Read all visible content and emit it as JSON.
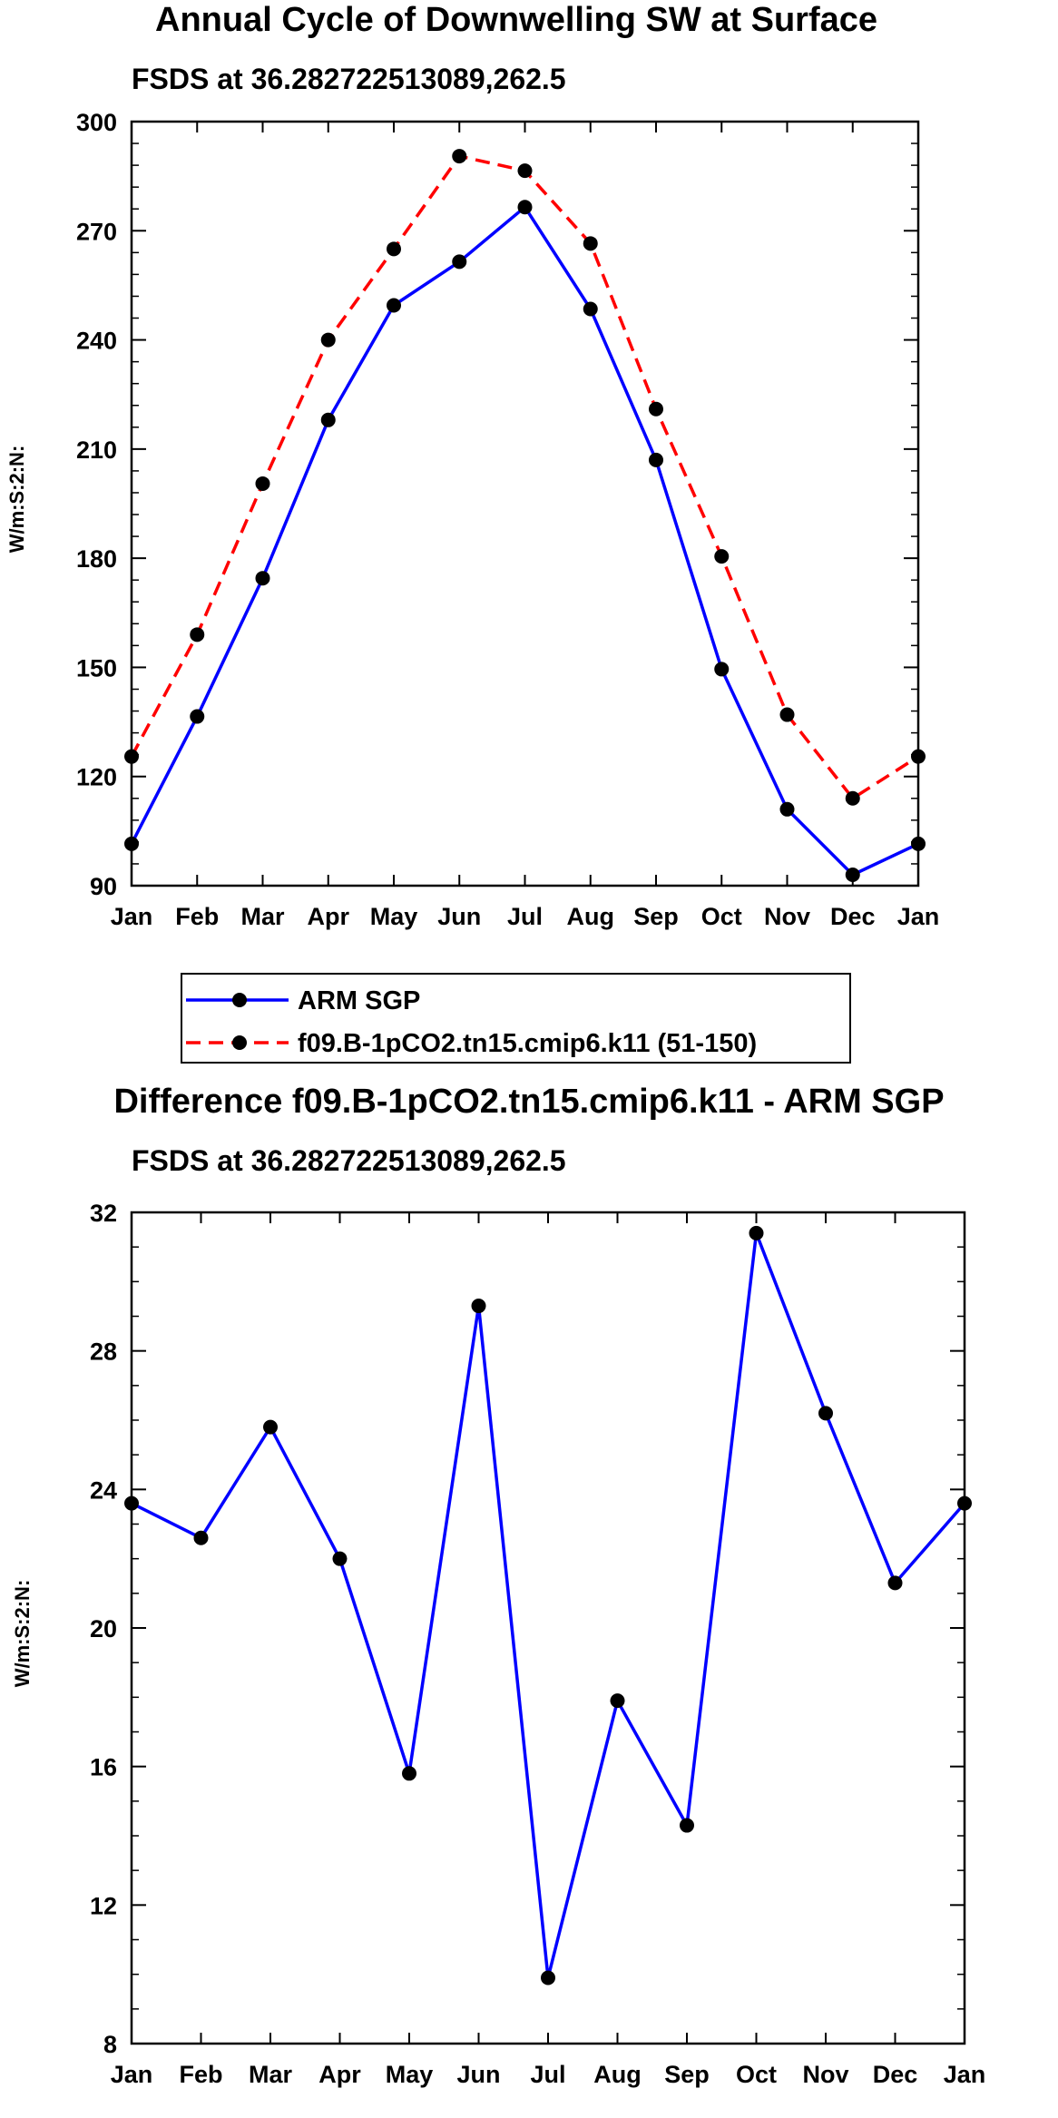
{
  "chart_data": [
    {
      "type": "line",
      "title": "Annual Cycle of Downwelling SW at Surface",
      "subtitle": "FSDS at 36.282722513089,262.5",
      "xlabel": "",
      "ylabel": "W/m:S:2:N:",
      "categories": [
        "Jan",
        "Feb",
        "Mar",
        "Apr",
        "May",
        "Jun",
        "Jul",
        "Aug",
        "Sep",
        "Oct",
        "Nov",
        "Dec",
        "Jan"
      ],
      "ylim": [
        90,
        300
      ],
      "yticks": [
        90,
        120,
        150,
        180,
        210,
        240,
        270,
        300
      ],
      "ytick_labels": [
        "90",
        "120",
        "150",
        "180",
        "210",
        "240",
        "270",
        "300"
      ],
      "series": [
        {
          "name": "ARM SGP",
          "color": "#0000ff",
          "dash": "solid",
          "values": [
            101.5,
            136.5,
            174.5,
            218,
            249.5,
            261.5,
            276.5,
            248.5,
            207,
            149.5,
            111,
            93,
            101.5
          ]
        },
        {
          "name": "f09.B-1pCO2.tn15.cmip6.k11 (51-150)",
          "color": "#ff0000",
          "dash": "dashed",
          "values": [
            125.5,
            159,
            200.5,
            240,
            265,
            290.5,
            286.5,
            266.5,
            221,
            180.5,
            137,
            114,
            125.5
          ]
        }
      ],
      "legend": {
        "placement": "below-plot",
        "entries": [
          "ARM SGP",
          "f09.B-1pCO2.tn15.cmip6.k11 (51-150)"
        ]
      }
    },
    {
      "type": "line",
      "title": "Difference f09.B-1pCO2.tn15.cmip6.k11 - ARM SGP",
      "subtitle": "FSDS at 36.282722513089,262.5",
      "xlabel": "",
      "ylabel": "W/m:S:2:N:",
      "categories": [
        "Jan",
        "Feb",
        "Mar",
        "Apr",
        "May",
        "Jun",
        "Jul",
        "Aug",
        "Sep",
        "Oct",
        "Nov",
        "Dec",
        "Jan"
      ],
      "ylim": [
        8,
        32
      ],
      "yticks": [
        8,
        12,
        16,
        20,
        24,
        28,
        32
      ],
      "ytick_labels": [
        "8",
        "12",
        "16",
        "20",
        "24",
        "28",
        "32"
      ],
      "series": [
        {
          "name": "Difference",
          "color": "#0000ff",
          "dash": "solid",
          "values": [
            23.6,
            22.6,
            25.8,
            22.0,
            15.8,
            29.3,
            9.9,
            17.9,
            14.3,
            31.4,
            26.2,
            21.3,
            23.6
          ]
        }
      ]
    }
  ]
}
